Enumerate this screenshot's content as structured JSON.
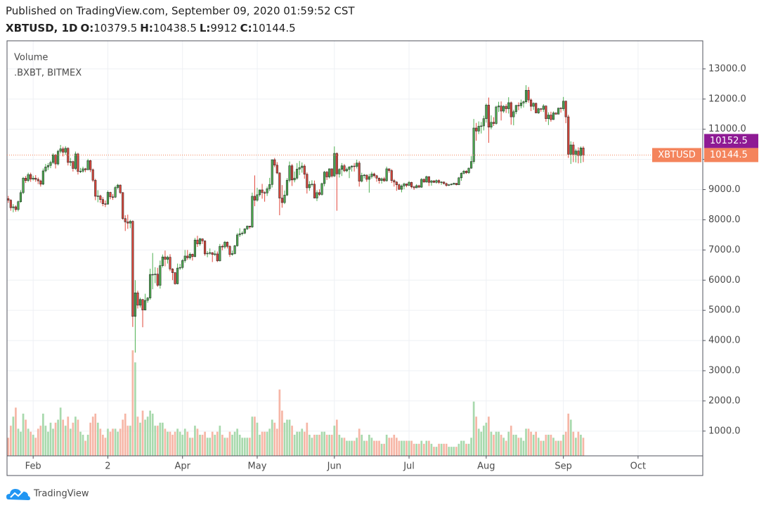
{
  "header": {
    "published": "Published on TradingView.com, September 09, 2020 01:59:52 CST",
    "symbol": "XBTUSD, 1D",
    "ohlc_labels": [
      "O:",
      "H:",
      "L:",
      "C:"
    ]
  },
  "footer": {
    "brand": "TradingView"
  },
  "chart_data": {
    "type": "candlestick",
    "indicator": "Volume",
    "source": ".BXBT, BITMEX",
    "symbol_tag": "XBTUSD",
    "marker_price": 10152.5,
    "marker_color": "#8e1a94",
    "last_color": "#f4845c",
    "up_color": "#4caf50",
    "down_color": "#e0463a",
    "border_color": "#2b2b2b",
    "volume_up_color": "#a8d9ad",
    "volume_down_color": "#f6b6a6",
    "grid": true,
    "xlim": [
      -0.5,
      279
    ],
    "xticks": [
      {
        "value": 10,
        "label": "Feb"
      },
      {
        "value": 40,
        "label": "2"
      },
      {
        "value": 70,
        "label": "Apr"
      },
      {
        "value": 100,
        "label": "May"
      },
      {
        "value": 131,
        "label": "Jun"
      },
      {
        "value": 161,
        "label": "Jul"
      },
      {
        "value": 192,
        "label": "Aug"
      },
      {
        "value": 223,
        "label": "Sep"
      },
      {
        "value": 253,
        "label": "Oct"
      }
    ],
    "ylim": [
      180,
      13930
    ],
    "yticks": [
      {
        "value": 1000,
        "label": "1000.0"
      },
      {
        "value": 2000,
        "label": "2000.0"
      },
      {
        "value": 3000,
        "label": "3000.0"
      },
      {
        "value": 4000,
        "label": "4000.0"
      },
      {
        "value": 5000,
        "label": "5000.0"
      },
      {
        "value": 6000,
        "label": "6000.0"
      },
      {
        "value": 7000,
        "label": "7000.0"
      },
      {
        "value": 8000,
        "label": "8000.0"
      },
      {
        "value": 9000,
        "label": "9000.0"
      },
      {
        "value": 10000,
        "label": "10000.0"
      },
      {
        "value": 11000,
        "label": "11000.0"
      },
      {
        "value": 12000,
        "label": "12000.0"
      },
      {
        "value": 13000,
        "label": "13000.0"
      }
    ],
    "open": [
      8700,
      8650,
      8400,
      8430,
      8340,
      8600,
      8900,
      9380,
      9300,
      9500,
      9350,
      9380,
      9340,
      9290,
      9180,
      9620,
      9750,
      9800,
      9900,
      10150,
      9850,
      10270,
      10350,
      10240,
      10370,
      9900,
      9930,
      9700,
      10180,
      9600,
      9610,
      9690,
      9660,
      9960,
      9660,
      9310,
      8780,
      8790,
      8670,
      8530,
      8520,
      8910,
      8760,
      8750,
      9070,
      9150,
      8900,
      8040,
      7930,
      7890,
      7950,
      4800,
      5580,
      5170,
      5360,
      5010,
      5330,
      5410,
      6190,
      6190,
      6200,
      5830,
      6480,
      6770,
      6690,
      6760,
      6370,
      6250,
      5880,
      6400,
      6420,
      6650,
      6800,
      6740,
      6860,
      6780,
      7330,
      7200,
      7370,
      7300,
      6870,
      6890,
      6910,
      6850,
      6870,
      6640,
      7120,
      7100,
      7260,
      7120,
      6850,
      6880,
      7140,
      7500,
      7540,
      7560,
      7700,
      7790,
      7760,
      8780,
      8650,
      8830,
      8990,
      8900,
      8890,
      9030,
      9170,
      9990,
      9810,
      9550,
      8720,
      8570,
      8820,
      9310,
      9790,
      9320,
      9380,
      9680,
      9730,
      9780,
      9510,
      9060,
      9170,
      9180,
      8720,
      8900,
      8840,
      9200,
      9580,
      9420,
      9690,
      9450,
      10200,
      9520,
      9670,
      9790,
      9620,
      9670,
      9750,
      9780,
      9770,
      9880,
      9280,
      9470,
      9480,
      9340,
      9430,
      9520,
      9460,
      9380,
      9300,
      9360,
      9290,
      9690,
      9630,
      9300,
      9250,
      9160,
      9010,
      9120,
      9190,
      9140,
      9240,
      9090,
      9060,
      9130,
      9080,
      9340,
      9250,
      9430,
      9240,
      9290,
      9240,
      9300,
      9240,
      9250,
      9200,
      9140,
      9160,
      9180,
      9210,
      9160,
      9390,
      9540,
      9610,
      9560,
      9710,
      9930,
      11040,
      10940,
      11100,
      11110,
      11350,
      11800,
      11070,
      11230,
      11190,
      11740,
      11770,
      11600,
      11760,
      11680,
      11880,
      11410,
      11580,
      11790,
      11780,
      11870,
      11910,
      12290,
      11970,
      11760,
      11860,
      11540,
      11680,
      11660,
      11770,
      11350,
      11470,
      11320,
      11540,
      11500,
      11700,
      11680,
      11930,
      11410,
      10170,
      10480,
      10170,
      10280,
      10130,
      10379.5
    ],
    "high": [
      8790,
      8680,
      8520,
      8480,
      8640,
      8980,
      9420,
      9450,
      9560,
      9560,
      9460,
      9480,
      9400,
      9330,
      9700,
      9850,
      9880,
      9960,
      10200,
      10180,
      10320,
      10480,
      10420,
      10440,
      10400,
      10050,
      9960,
      10260,
      10220,
      9720,
      9760,
      9720,
      10020,
      9990,
      9700,
      9360,
      8980,
      8830,
      8750,
      8640,
      8970,
      8930,
      8850,
      9130,
      9190,
      9170,
      8920,
      8150,
      8170,
      8000,
      7980,
      6000,
      5650,
      5420,
      5380,
      5550,
      5440,
      6380,
      6900,
      6430,
      6410,
      6650,
      6850,
      6980,
      6810,
      6860,
      6400,
      6270,
      6550,
      6540,
      6700,
      7000,
      7000,
      6920,
      6880,
      7400,
      7470,
      7400,
      7380,
      7320,
      6960,
      7050,
      6930,
      6980,
      6950,
      7200,
      7180,
      7300,
      7280,
      7160,
      6980,
      7170,
      7560,
      7720,
      7620,
      7720,
      7810,
      7800,
      8900,
      9470,
      9060,
      9000,
      9190,
      8950,
      9100,
      9390,
      10000,
      10050,
      9910,
      9580,
      9150,
      8970,
      9380,
      9930,
      9850,
      9600,
      9880,
      9950,
      9900,
      9840,
      9570,
      9280,
      9310,
      9300,
      8980,
      9010,
      9230,
      9620,
      9620,
      9700,
      9700,
      10430,
      10230,
      9710,
      9880,
      9850,
      9730,
      9780,
      9800,
      9880,
      9990,
      9950,
      9560,
      9520,
      9500,
      9520,
      9590,
      9560,
      9490,
      9400,
      9400,
      9420,
      9760,
      9700,
      9680,
      9350,
      9280,
      9200,
      9170,
      9230,
      9200,
      9290,
      9260,
      9130,
      9180,
      9160,
      9380,
      9370,
      9460,
      9440,
      9320,
      9310,
      9340,
      9340,
      9280,
      9270,
      9230,
      9190,
      9210,
      9230,
      9220,
      9420,
      9580,
      9650,
      9640,
      9730,
      10110,
      11340,
      11210,
      11260,
      11240,
      11450,
      11850,
      12050,
      11460,
      11400,
      11780,
      11910,
      11920,
      11800,
      11830,
      12060,
      11920,
      11650,
      11810,
      11890,
      11980,
      11950,
      12460,
      12400,
      12020,
      11890,
      11880,
      11710,
      11700,
      11830,
      11790,
      11560,
      11580,
      11590,
      11560,
      11710,
      11730,
      12070,
      11950,
      11480,
      10600,
      10580,
      10350,
      10400,
      10430,
      10438.5
    ],
    "low": [
      8560,
      8300,
      8250,
      8270,
      8280,
      8560,
      8850,
      9220,
      9250,
      9260,
      9300,
      9260,
      9180,
      9100,
      9150,
      9570,
      9650,
      9710,
      9850,
      9700,
      9800,
      10200,
      10100,
      10150,
      9800,
      9780,
      9600,
      9650,
      9500,
      9550,
      9560,
      9580,
      9640,
      9580,
      9250,
      8650,
      8580,
      8560,
      8450,
      8420,
      8500,
      8680,
      8660,
      8720,
      9010,
      8850,
      8000,
      7630,
      7700,
      7720,
      4450,
      3600,
      5060,
      5090,
      4440,
      5000,
      5250,
      5350,
      5700,
      5900,
      5780,
      5720,
      6420,
      6460,
      6550,
      6300,
      6000,
      5850,
      5860,
      6340,
      6360,
      6580,
      6670,
      6680,
      6650,
      6760,
      7100,
      7140,
      7200,
      6810,
      6760,
      6840,
      6600,
      6800,
      6600,
      6620,
      6990,
      7040,
      7050,
      6770,
      6810,
      6850,
      7110,
      7430,
      7480,
      7520,
      7660,
      7700,
      7730,
      8450,
      8600,
      8770,
      8700,
      8600,
      8790,
      8950,
      9070,
      9740,
      9510,
      8150,
      8400,
      8520,
      8790,
      9240,
      9120,
      9240,
      9330,
      9480,
      9560,
      9360,
      8870,
      8960,
      9100,
      8710,
      8620,
      8790,
      8800,
      9110,
      9320,
      9370,
      9400,
      9420,
      8300,
      9400,
      9450,
      9580,
      9580,
      9380,
      9600,
      9600,
      9700,
      9100,
      9240,
      9370,
      9260,
      8900,
      9360,
      9400,
      9260,
      9200,
      9200,
      9260,
      9270,
      9560,
      9220,
      9100,
      8960,
      8990,
      8910,
      9010,
      9080,
      9110,
      9040,
      8990,
      9050,
      9060,
      9060,
      9230,
      9230,
      9120,
      9130,
      9220,
      9200,
      9190,
      9160,
      9170,
      9100,
      9120,
      9140,
      9150,
      9140,
      9150,
      9290,
      9500,
      9520,
      9520,
      9690,
      9860,
      10620,
      10840,
      10860,
      10960,
      11220,
      10550,
      11000,
      11110,
      11150,
      11570,
      11290,
      11540,
      11540,
      11520,
      11150,
      11130,
      11500,
      11630,
      11690,
      11720,
      11850,
      11880,
      11600,
      11640,
      11530,
      11510,
      11580,
      11570,
      11250,
      11140,
      11250,
      11310,
      11480,
      11500,
      11550,
      11610,
      11200,
      10050,
      9850,
      9910,
      9900,
      9870,
      9880,
      9912
    ],
    "close": [
      8650,
      8400,
      8430,
      8340,
      8600,
      8900,
      9380,
      9300,
      9500,
      9350,
      9380,
      9340,
      9290,
      9180,
      9620,
      9750,
      9800,
      9900,
      10150,
      9850,
      10270,
      10350,
      10240,
      10370,
      9900,
      9930,
      9700,
      10180,
      9600,
      9610,
      9690,
      9660,
      9960,
      9660,
      9310,
      8780,
      8790,
      8670,
      8530,
      8520,
      8910,
      8760,
      8750,
      9070,
      9150,
      8900,
      8040,
      7930,
      7890,
      7950,
      4800,
      5580,
      5170,
      5360,
      5010,
      5330,
      5410,
      6190,
      6190,
      6200,
      5830,
      6480,
      6770,
      6690,
      6760,
      6370,
      6250,
      5880,
      6400,
      6420,
      6650,
      6800,
      6740,
      6860,
      6780,
      7330,
      7200,
      7370,
      7300,
      6870,
      6890,
      6910,
      6850,
      6870,
      6640,
      7120,
      7100,
      7260,
      7120,
      6850,
      6880,
      7140,
      7500,
      7540,
      7560,
      7700,
      7790,
      7760,
      8780,
      8650,
      8830,
      8990,
      8900,
      8890,
      9030,
      9170,
      9990,
      9810,
      9550,
      8720,
      8570,
      8820,
      9310,
      9790,
      9320,
      9380,
      9680,
      9730,
      9780,
      9510,
      9060,
      9170,
      9180,
      8720,
      8900,
      8840,
      9200,
      9580,
      9420,
      9690,
      9450,
      10200,
      9520,
      9670,
      9790,
      9620,
      9670,
      9750,
      9780,
      9770,
      9880,
      9280,
      9470,
      9480,
      9340,
      9430,
      9520,
      9460,
      9380,
      9300,
      9360,
      9290,
      9690,
      9630,
      9300,
      9250,
      9160,
      9010,
      9120,
      9190,
      9140,
      9240,
      9090,
      9060,
      9130,
      9080,
      9340,
      9250,
      9430,
      9240,
      9290,
      9240,
      9300,
      9240,
      9250,
      9200,
      9140,
      9160,
      9180,
      9210,
      9160,
      9390,
      9540,
      9610,
      9560,
      9710,
      9930,
      11040,
      10940,
      11100,
      11110,
      11350,
      11800,
      11070,
      11230,
      11190,
      11740,
      11770,
      11600,
      11760,
      11680,
      11880,
      11410,
      11580,
      11790,
      11780,
      11870,
      11910,
      12290,
      11970,
      11760,
      11860,
      11540,
      11680,
      11660,
      11770,
      11350,
      11470,
      11320,
      11540,
      11500,
      11700,
      11680,
      11930,
      11410,
      10170,
      10480,
      10170,
      10280,
      10130,
      10379.5,
      10144.5
    ],
    "volume": [
      600,
      1000,
      1300,
      1600,
      900,
      800,
      1400,
      1200,
      900,
      800,
      700,
      600,
      900,
      1000,
      1400,
      1000,
      800,
      1100,
      900,
      1100,
      1200,
      1600,
      1200,
      1000,
      1300,
      900,
      1100,
      1300,
      1200,
      800,
      700,
      500,
      700,
      1100,
      1300,
      1400,
      1100,
      900,
      700,
      600,
      900,
      800,
      900,
      900,
      800,
      900,
      1200,
      1400,
      1000,
      1000,
      3500,
      3100,
      1300,
      1100,
      1500,
      1200,
      1300,
      1500,
      1400,
      1000,
      1000,
      1100,
      1100,
      900,
      800,
      800,
      700,
      800,
      900,
      800,
      700,
      900,
      800,
      600,
      600,
      1000,
      900,
      700,
      700,
      800,
      600,
      600,
      800,
      700,
      800,
      1000,
      700,
      600,
      600,
      800,
      700,
      800,
      900,
      700,
      600,
      600,
      600,
      600,
      1300,
      1300,
      1100,
      700,
      800,
      800,
      800,
      900,
      1200,
      1100,
      900,
      2200,
      1500,
      1100,
      1200,
      1200,
      1000,
      700,
      800,
      800,
      900,
      800,
      1100,
      700,
      600,
      700,
      700,
      700,
      800,
      800,
      700,
      700,
      700,
      1000,
      1200,
      700,
      600,
      600,
      500,
      500,
      500,
      500,
      600,
      900,
      700,
      500,
      500,
      700,
      600,
      500,
      500,
      500,
      400,
      400,
      700,
      600,
      600,
      700,
      600,
      500,
      500,
      500,
      500,
      500,
      500,
      400,
      400,
      400,
      500,
      400,
      500,
      500,
      400,
      300,
      300,
      400,
      400,
      400,
      400,
      300,
      300,
      300,
      300,
      400,
      500,
      500,
      400,
      400,
      600,
      1800,
      1300,
      900,
      800,
      1000,
      1100,
      1300,
      800,
      700,
      800,
      800,
      700,
      600,
      500,
      800,
      1000,
      700,
      700,
      600,
      600,
      500,
      900,
      900,
      800,
      700,
      800,
      600,
      500,
      500,
      700,
      700,
      700,
      600,
      500,
      500,
      500,
      700,
      800,
      1400,
      1200,
      800,
      600,
      800,
      700,
      600
    ]
  }
}
